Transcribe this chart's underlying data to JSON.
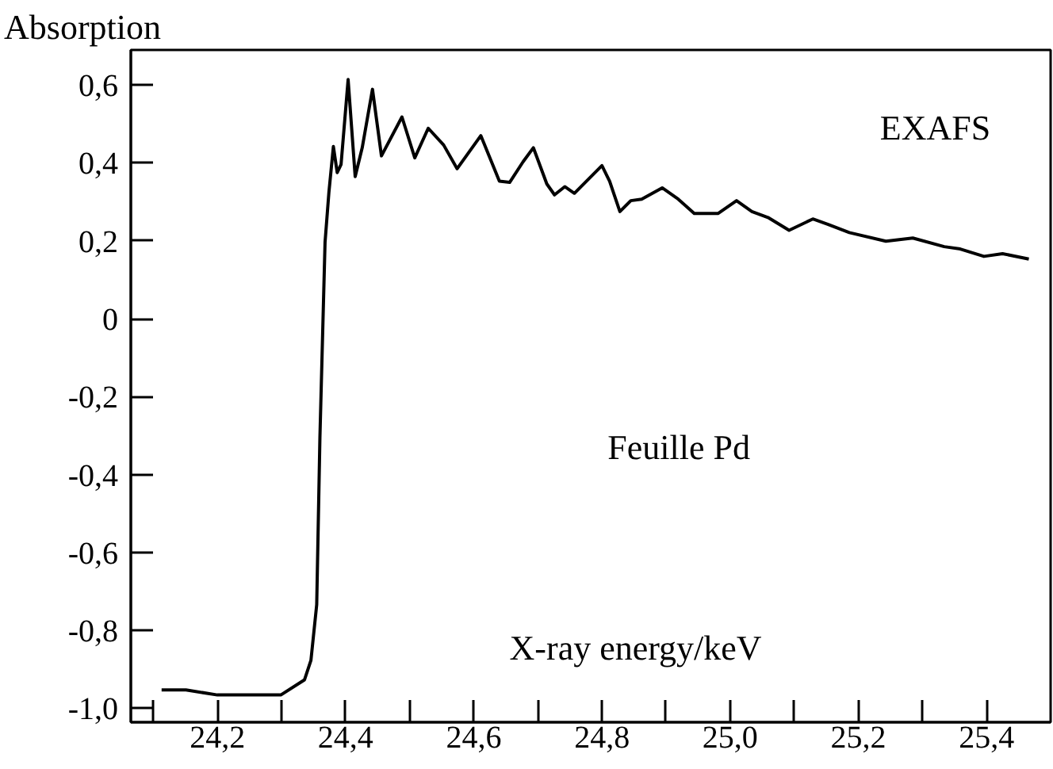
{
  "chart_data": {
    "type": "line",
    "xlabel": "X-ray energy/keV",
    "ylabel": "Absorption",
    "annotations": [
      "EXAFS",
      "Feuille Pd"
    ],
    "xlim": [
      24.065,
      25.5
    ],
    "ylim": [
      -1.036,
      0.69
    ],
    "xticks": [
      {
        "value": 24.1,
        "label": null
      },
      {
        "value": 24.2,
        "label": "24,2"
      },
      {
        "value": 24.3,
        "label": null
      },
      {
        "value": 24.4,
        "label": "24,4"
      },
      {
        "value": 24.5,
        "label": null
      },
      {
        "value": 24.6,
        "label": "24,6"
      },
      {
        "value": 24.7,
        "label": null
      },
      {
        "value": 24.8,
        "label": "24,8"
      },
      {
        "value": 24.9,
        "label": null
      },
      {
        "value": 25.0,
        "label": "25,0"
      },
      {
        "value": 25.1,
        "label": null
      },
      {
        "value": 25.2,
        "label": "25,2"
      },
      {
        "value": 25.3,
        "label": null
      },
      {
        "value": 25.4,
        "label": "25,4"
      }
    ],
    "yticks": [
      {
        "value": -1.0,
        "label": "-1,0"
      },
      {
        "value": -0.8,
        "label": "-0,8"
      },
      {
        "value": -0.6,
        "label": "-0,6"
      },
      {
        "value": -0.4,
        "label": "-0,4"
      },
      {
        "value": -0.2,
        "label": "-0,2"
      },
      0,
      {
        "value": 0.2,
        "label": "0,2"
      },
      {
        "value": 0.4,
        "label": "0,4"
      },
      {
        "value": 0.6,
        "label": "0,6"
      }
    ],
    "grid": false,
    "marker": "none",
    "line_style": "solid",
    "series": [
      {
        "color": "#000000",
        "x": [
          24.113,
          24.151,
          24.2,
          24.299,
          24.336,
          24.346,
          24.355,
          24.36,
          24.368,
          24.374,
          24.381,
          24.387,
          24.393,
          24.404,
          24.415,
          24.426,
          24.442,
          24.456,
          24.488,
          24.508,
          24.529,
          24.553,
          24.574,
          24.611,
          24.64,
          24.656,
          24.677,
          24.693,
          24.714,
          24.726,
          24.742,
          24.757,
          24.8,
          24.812,
          24.828,
          24.845,
          24.862,
          24.894,
          24.919,
          24.944,
          24.981,
          25.01,
          25.034,
          25.059,
          25.092,
          25.129,
          25.153,
          25.186,
          25.243,
          25.285,
          25.334,
          25.359,
          25.396,
          25.425,
          25.466
        ],
        "values": [
          -0.953,
          -0.953,
          -0.966,
          -0.966,
          -0.927,
          -0.877,
          -0.734,
          -0.305,
          0.196,
          0.324,
          0.442,
          0.375,
          0.396,
          0.614,
          0.365,
          0.439,
          0.589,
          0.418,
          0.518,
          0.413,
          0.489,
          0.446,
          0.385,
          0.47,
          0.353,
          0.35,
          0.403,
          0.439,
          0.346,
          0.318,
          0.339,
          0.322,
          0.393,
          0.353,
          0.275,
          0.303,
          0.307,
          0.336,
          0.307,
          0.27,
          0.27,
          0.303,
          0.275,
          0.26,
          0.227,
          0.256,
          0.242,
          0.221,
          0.199,
          0.207,
          0.185,
          0.179,
          0.16,
          0.167,
          0.153
        ]
      }
    ]
  }
}
